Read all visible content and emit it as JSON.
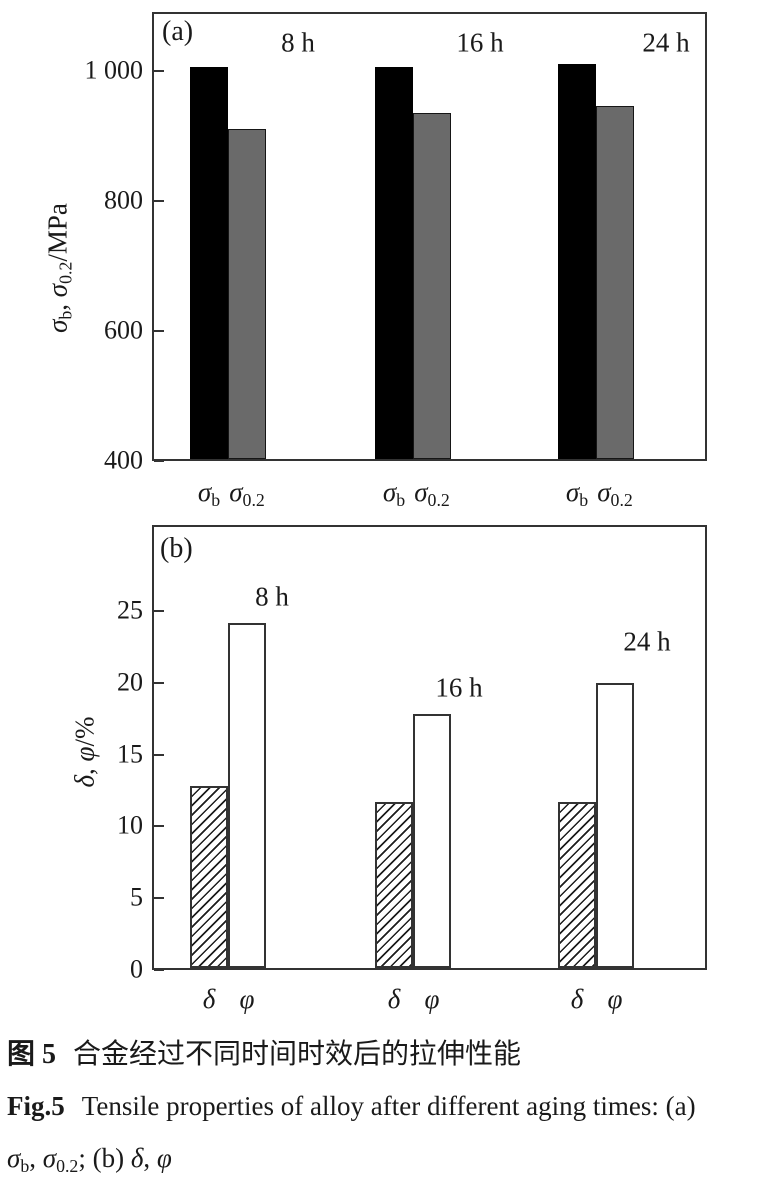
{
  "figure": {
    "caption": {
      "zh_label": "图 5",
      "zh_text": "合金经过不同时间时效后的拉伸性能",
      "en_label": "Fig.5",
      "en_text": "Tensile properties of alloy after different aging times: (a)",
      "symbols_line": [
        {
          "t": "σ",
          "i": 1
        },
        {
          "t": "b",
          "s": 1
        },
        {
          "t": ", "
        },
        {
          "t": "σ",
          "i": 1
        },
        {
          "t": "0.2",
          "s": 1
        },
        {
          "t": "; (b) "
        },
        {
          "t": "δ",
          "i": 1
        },
        {
          "t": ", "
        },
        {
          "t": "φ",
          "i": 1
        }
      ]
    }
  },
  "colors": {
    "bar_black": "#000000",
    "bar_gray": "#6a6a6a",
    "bar_white": "#ffffff",
    "axis": "#333333",
    "text": "#1a1a1a"
  },
  "chart_data": [
    {
      "id": "a",
      "type": "bar",
      "panel_label": "(a)",
      "title": "",
      "categories": [
        "8 h",
        "16 h",
        "24 h"
      ],
      "series": [
        {
          "key": "sigma-b",
          "name": "σb",
          "style": "solid-black",
          "label_parts": [
            {
              "t": "σ",
              "i": 1
            },
            {
              "t": "b",
              "s": 1
            }
          ],
          "values": [
            1005,
            1005,
            1010
          ]
        },
        {
          "key": "sigma-0-2",
          "name": "σ0.2",
          "style": "solid-gray",
          "label_parts": [
            {
              "t": "σ",
              "i": 1
            },
            {
              "t": "0.2",
              "s": 1
            }
          ],
          "values": [
            910,
            935,
            945
          ]
        }
      ],
      "xlabel": "",
      "ylabel": "σb, σ0.2/MPa",
      "ylabel_parts": [
        {
          "t": "σ",
          "i": 1
        },
        {
          "t": "b",
          "s": 1
        },
        {
          "t": ", "
        },
        {
          "t": "σ",
          "i": 1
        },
        {
          "t": "0.2",
          "s": 1
        },
        {
          "t": "/MPa"
        }
      ],
      "unit": "MPa",
      "ylim": [
        400,
        1090
      ],
      "yticks": [
        {
          "v": 400,
          "label": "400"
        },
        {
          "v": 600,
          "label": "600"
        },
        {
          "v": 800,
          "label": "800"
        },
        {
          "v": 1000,
          "label": "1 000"
        }
      ],
      "grid": false,
      "legend": "none"
    },
    {
      "id": "b",
      "type": "bar",
      "panel_label": "(b)",
      "title": "",
      "categories": [
        "8 h",
        "16 h",
        "24 h"
      ],
      "series": [
        {
          "key": "delta",
          "name": "δ",
          "style": "hatched",
          "label_parts": [
            {
              "t": "δ",
              "i": 1
            }
          ],
          "values": [
            12.8,
            11.7,
            11.7
          ]
        },
        {
          "key": "phi",
          "name": "φ",
          "style": "white",
          "label_parts": [
            {
              "t": "φ",
              "i": 1
            }
          ],
          "values": [
            24.2,
            17.8,
            20.0
          ]
        }
      ],
      "xlabel": "",
      "ylabel": "δ, φ/%",
      "ylabel_parts": [
        {
          "t": "δ",
          "i": 1
        },
        {
          "t": ", "
        },
        {
          "t": "φ",
          "i": 1
        },
        {
          "t": "/%"
        }
      ],
      "unit": "%",
      "ylim": [
        0,
        31
      ],
      "yticks": [
        {
          "v": 0,
          "label": "0"
        },
        {
          "v": 5,
          "label": "5"
        },
        {
          "v": 10,
          "label": "10"
        },
        {
          "v": 15,
          "label": "15"
        },
        {
          "v": 20,
          "label": "20"
        },
        {
          "v": 25,
          "label": "25"
        }
      ],
      "grid": false,
      "legend": "none"
    }
  ]
}
